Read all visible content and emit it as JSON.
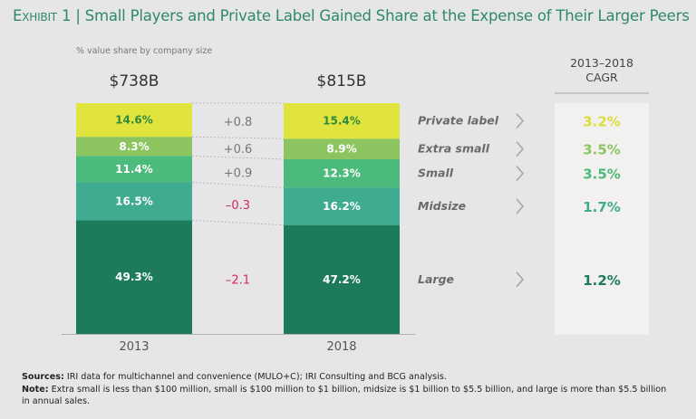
{
  "header": {
    "exhibit": "Exhibit 1",
    "separator": "|",
    "title": "Small Players and Private Label Gained Share at the Expense of Their Larger Peers",
    "subtitle": "% value share by company size"
  },
  "cagr_header": "2013–2018\nCAGR",
  "footnotes": {
    "sources_label": "Sources:",
    "sources_text": " IRI data for multichannel and convenience (MULO+C); IRI Consulting and BCG analysis.",
    "note_label": "Note:",
    "note_text": " Extra small is less than $100 million, small is $100 million to $1 billion, midsize is $1 billion to $5.5 billion, and large is more than $5.5 billion in annual sales."
  },
  "chart_data": {
    "type": "bar",
    "stacked": true,
    "title": "Small Players and Private Label Gained Share at the Expense of Their Larger Peers",
    "ylabel": "% value share by company size",
    "categories": [
      "2013",
      "2018"
    ],
    "totals": [
      "$738B",
      "$815B"
    ],
    "ylim": [
      0,
      100
    ],
    "series": [
      {
        "name": "Large",
        "values": [
          49.3,
          47.2
        ],
        "labels": [
          "49.3%",
          "47.2%"
        ],
        "change": "–2.1",
        "cagr": "1.2%",
        "color": "#1e7b5a",
        "label_color": "#ffffff",
        "cagr_color": "#1e7b5a",
        "change_color": "#d6295a"
      },
      {
        "name": "Midsize",
        "values": [
          16.5,
          16.2
        ],
        "labels": [
          "16.5%",
          "16.2%"
        ],
        "change": "–0.3",
        "cagr": "1.7%",
        "color": "#3fab90",
        "label_color": "#ffffff",
        "cagr_color": "#3fab90",
        "change_color": "#d6295a"
      },
      {
        "name": "Small",
        "values": [
          11.4,
          12.3
        ],
        "labels": [
          "11.4%",
          "12.3%"
        ],
        "change": "+0.9",
        "cagr": "3.5%",
        "color": "#4cba7a",
        "label_color": "#ffffff",
        "cagr_color": "#4cba7a",
        "change_color": "#777777"
      },
      {
        "name": "Extra small",
        "values": [
          8.3,
          8.9
        ],
        "labels": [
          "8.3%",
          "8.9%"
        ],
        "change": "+0.6",
        "cagr": "3.5%",
        "color": "#8cc560",
        "label_color": "#ffffff",
        "cagr_color": "#8cc560",
        "change_color": "#777777"
      },
      {
        "name": "Private label",
        "values": [
          14.6,
          15.4
        ],
        "labels": [
          "14.6%",
          "15.4%"
        ],
        "change": "+0.8",
        "cagr": "3.2%",
        "color": "#e2e43e",
        "label_color": "#2e8a3e",
        "cagr_color": "#d9de3a",
        "change_color": "#777777"
      }
    ],
    "legend_chevron": "›",
    "cagr_title": "2013–2018 CAGR"
  }
}
